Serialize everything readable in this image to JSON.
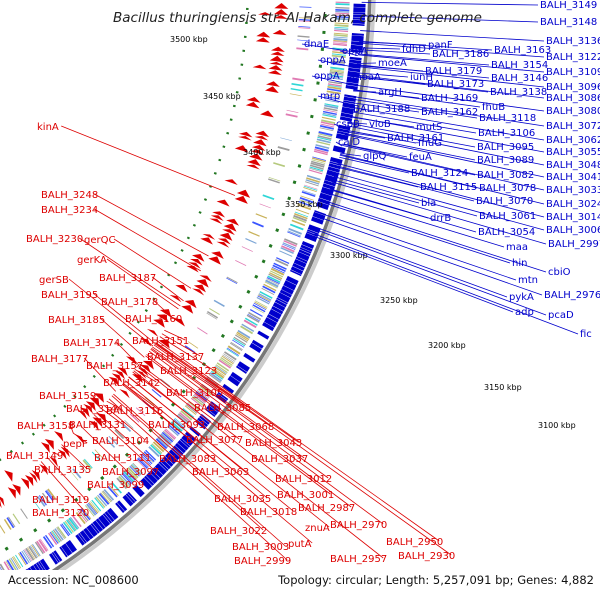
{
  "title": "Bacillus thuringiensis str. Al Hakam, complete genome",
  "footer": {
    "accession": "Accession: NC_008600",
    "summary": "Topology: circular; Length: 5,257,091 bp; Genes: 4,882"
  },
  "colors": {
    "forward_genes": "#0000cc",
    "reverse_genes": "#dd0000",
    "backbone": "#777777",
    "rna_marks": "#227722",
    "cds_tracks": [
      "#7da6d6",
      "#9c9c9c",
      "#b5c97d",
      "#e07ab3",
      "#2fd6d6",
      "#3a55ff",
      "#c9b25a"
    ]
  },
  "scale_labels": [
    "3500 kbp",
    "3450 kbp",
    "3400 kbp",
    "3350 kbp",
    "3300 kbp",
    "3250 kbp",
    "3200 kbp",
    "3150 kbp",
    "3100 kbp"
  ],
  "forward_labels": [
    "BALH_3149",
    "BALH_3148",
    "BALH_3136",
    "BALH_3122",
    "BALH_3109",
    "BALH_3096",
    "BALH_3086",
    "BALH_3080",
    "BALH_3072",
    "BALH_3062",
    "BALH_3055",
    "BALH_3048",
    "BALH_3041",
    "BALH_3033",
    "BALH_3024",
    "BALH_3014",
    "BALH_3006",
    "BALH_2997",
    "cbiO",
    "BALH_2976",
    "pcaD",
    "fic",
    "dnaE",
    "fdhD",
    "panF",
    "oppA",
    "moeA",
    "oppA",
    "iunH",
    "oppA",
    "moaA",
    "argH",
    "mrp",
    "BALH_3186",
    "BALH_3179",
    "BALH_3173",
    "BALH_3163",
    "BALH_3154",
    "BALH_3146",
    "BALH_3138",
    "BALH_3188",
    "BALH_3169",
    "BALH_3162",
    "cspB",
    "vioB",
    "fhuB",
    "caiD",
    "BALH_3161",
    "mutS",
    "BALH_3118",
    "BALH_3106",
    "fhuG",
    "BALH_3095",
    "glpQ",
    "feuA",
    "BALH_3089",
    "BALH_3124",
    "BALH_3082",
    "BALH_3115",
    "bla",
    "BALH_3078",
    "drrB",
    "BALH_3070",
    "BALH_3061",
    "BALH_3054",
    "maa",
    "hin",
    "mtn",
    "pykA",
    "adp"
  ],
  "reverse_labels": [
    "kinA",
    "BALH_3248",
    "BALH_3234",
    "BALH_3230",
    "gerQC",
    "gerKA",
    "BALH_3187",
    "gerSB",
    "BALH_3195",
    "BALH_3178",
    "BALH_3185",
    "BALH_3160",
    "BALH_3151",
    "BALH_3174",
    "BALH_3177",
    "BALH_3157",
    "BALH_3137",
    "BALH_3123",
    "BALH_3142",
    "BALH_3159",
    "BALH_3105",
    "BALH_3085",
    "BALH_3144",
    "BALH_3116",
    "BALH_3131",
    "BALH_3093",
    "BALH_3068",
    "BALH_3158",
    "BALH_3104",
    "BALH_3077",
    "BALH_3149",
    "pepF",
    "BALH_3111",
    "BALH_3083",
    "BALH_3043",
    "BALH_3135",
    "BALH_3097",
    "BALH_3063",
    "BALH_3037",
    "BALH_3099",
    "BALH_3012",
    "BALH_3119",
    "BALH_3001",
    "BALH_3035",
    "BALH_3018",
    "BALH_2987",
    "BALH_3120",
    "BALH_2970",
    "BALH_3022",
    "znuA",
    "BALH_2950",
    "BALH_3003",
    "putA",
    "BALH_2957",
    "BALH_2930",
    "BALH_2999"
  ]
}
